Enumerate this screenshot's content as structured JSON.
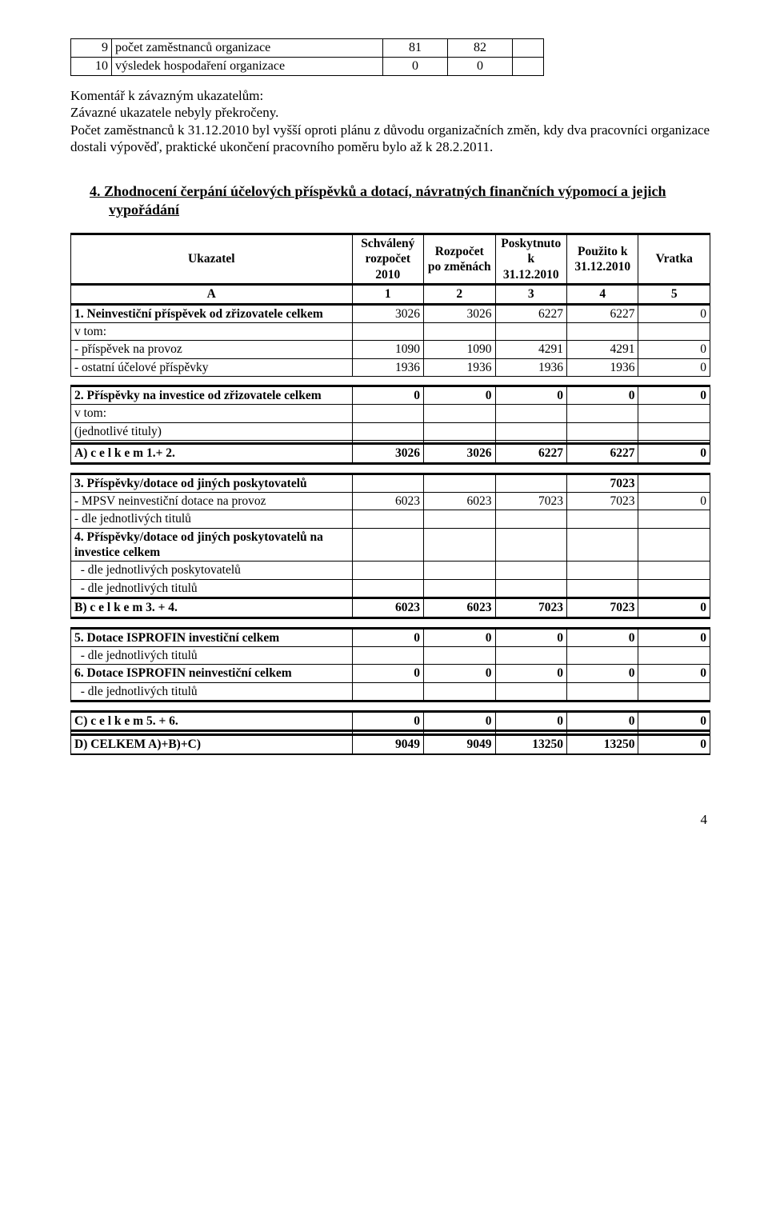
{
  "top_table": {
    "rows": [
      {
        "num": "9",
        "label": "počet zaměstnanců organizace",
        "v1": "81",
        "v2": "82"
      },
      {
        "num": "10",
        "label": "výsledek hospodaření organizace",
        "v1": "0",
        "v2": "0"
      }
    ]
  },
  "comment": {
    "p1": "Komentář k závazným ukazatelům:",
    "p2": "Závazné ukazatele nebyly překročeny.",
    "p3": "Počet zaměstnanců k 31.12.2010 byl vyšší oproti plánu z důvodu organizačních změn, kdy dva pracovníci organizace dostali výpověď, praktické ukončení pracovního poměru bylo až k 28.2.2011."
  },
  "section4_title": "4.  Zhodnocení čerpání účelových příspěvků a dotací, návratných finančních výpomocí a jejich vypořádání",
  "headers": {
    "h0": "Ukazatel",
    "h1": "Schválený rozpočet 2010",
    "h2": "Rozpočet po změnách",
    "h3": "Poskytnuto k 31.12.2010",
    "h4": "Použito k 31.12.2010",
    "h5": "Vratka",
    "a": "A",
    "c1": "1",
    "c2": "2",
    "c3": "3",
    "c4": "4",
    "c5": "5"
  },
  "rows": {
    "r1": {
      "label": "1. Neinvestiční příspěvek od zřizovatele celkem",
      "v": [
        "3026",
        "3026",
        "6227",
        "6227",
        "0"
      ],
      "bold": true
    },
    "r2": {
      "label": "v tom:"
    },
    "r3": {
      "label": "- příspěvek na provoz",
      "v": [
        "1090",
        "1090",
        "4291",
        "4291",
        "0"
      ]
    },
    "r4": {
      "label": "- ostatní účelové příspěvky",
      "v": [
        "1936",
        "1936",
        "1936",
        "1936",
        "0"
      ]
    },
    "r5": {
      "label": "2. Příspěvky na investice od zřizovatele celkem",
      "v": [
        "0",
        "0",
        "0",
        "0",
        "0"
      ],
      "bold": true
    },
    "r6": {
      "label": "v tom:"
    },
    "r7": {
      "label": "(jednotlivé tituly)"
    },
    "r8": {
      "label": "A)  c e l k e m  1.+ 2.",
      "v": [
        "3026",
        "3026",
        "6227",
        "6227",
        "0"
      ],
      "bold": true
    },
    "r9": {
      "label": "3. Příspěvky/dotace od jiných poskytovatelů",
      "v": [
        "",
        "",
        "",
        "7023",
        ""
      ],
      "bold": true
    },
    "r10": {
      "label": "- MPSV neinvestiční  dotace  na  provoz",
      "v": [
        "6023",
        "6023",
        "7023",
        "7023",
        "0"
      ]
    },
    "r11": {
      "label": "- dle jednotlivých titulů"
    },
    "r12": {
      "label": "4. Příspěvky/dotace od jiných poskytovatelů na investice celkem",
      "bold": true
    },
    "r13": {
      "label": "  - dle jednotlivých poskytovatelů"
    },
    "r14": {
      "label": "  - dle jednotlivých titulů"
    },
    "r15": {
      "label": "B)  c e l k e m  3. + 4.",
      "v": [
        "6023",
        "6023",
        "7023",
        "7023",
        "0"
      ],
      "bold": true
    },
    "r16": {
      "label": "5. Dotace ISPROFIN investiční  celkem",
      "v": [
        "0",
        "0",
        "0",
        "0",
        "0"
      ],
      "bold": true
    },
    "r17": {
      "label": "  - dle jednotlivých titulů"
    },
    "r18": {
      "label": "6. Dotace ISPROFIN neinvestiční celkem",
      "v": [
        "0",
        "0",
        "0",
        "0",
        "0"
      ],
      "bold": true
    },
    "r19": {
      "label": "  - dle jednotlivých titulů"
    },
    "r20": {
      "label": "C)   c e l k e m  5. + 6.",
      "v": [
        "0",
        "0",
        "0",
        "0",
        "0"
      ],
      "bold": true
    },
    "r21": {
      "label": "D)  CELKEM  A)+B)+C)",
      "v": [
        "9049",
        "9049",
        "13250",
        "13250",
        "0"
      ],
      "bold": true
    }
  },
  "page_number": "4"
}
